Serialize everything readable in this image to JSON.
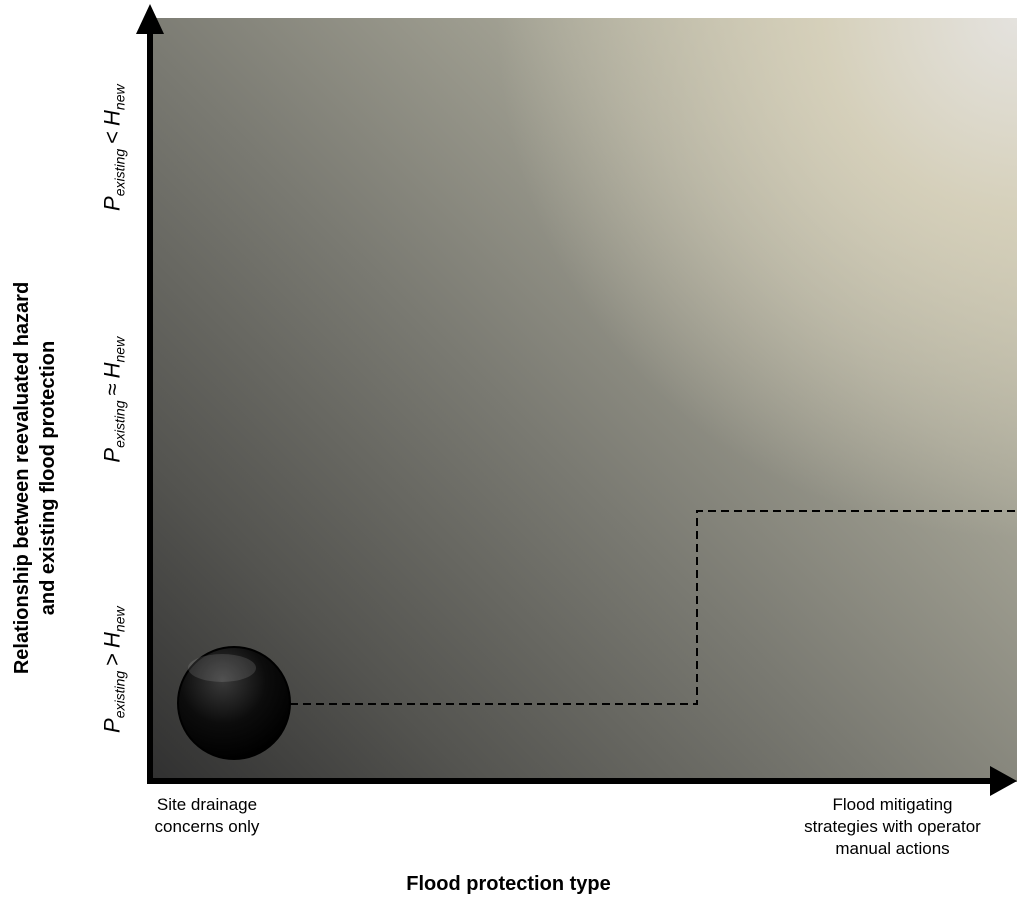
{
  "y_axis": {
    "title_lines": [
      "Relationship between reevaluated hazard",
      "and existing flood protection"
    ],
    "levels": [
      {
        "p": "P",
        "p_sub": "existing",
        "op": ">",
        "h": "H",
        "h_sub": "new"
      },
      {
        "p": "P",
        "p_sub": "existing",
        "op": "≈",
        "h": "H",
        "h_sub": "new"
      },
      {
        "p": "P",
        "p_sub": "existing",
        "op": "<",
        "h": "H",
        "h_sub": "new"
      }
    ]
  },
  "x_axis": {
    "title": "Flood protection type",
    "left_label_lines": [
      "Site drainage",
      "concerns only"
    ],
    "right_label_lines": [
      "Flood mitigating",
      "strategies with operator",
      "manual actions"
    ]
  }
}
